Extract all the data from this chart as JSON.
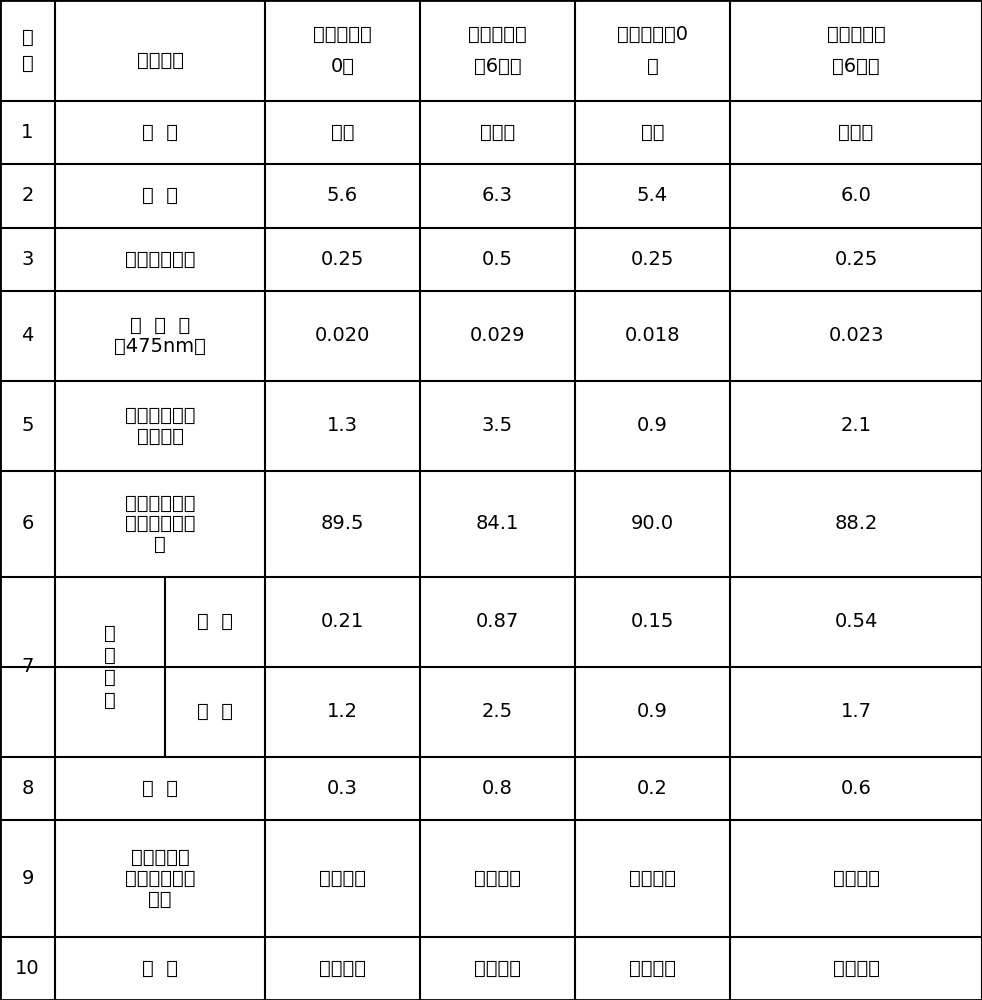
{
  "fig_width": 9.82,
  "fig_height": 10.0,
  "bg_color": "#ffffff",
  "border_color": "#000000",
  "header": {
    "col0_line1": "序",
    "col0_line2": "号",
    "col1_line1": "检验项目",
    "col2_line1": "改进前样品",
    "col2_line2": "0天",
    "col3_line1": "改进前样品",
    "col3_line2": "加6个月",
    "col4_line1": "改进后样品0",
    "col4_line2": "天",
    "col5_line1": "改进后样品",
    "col5_line2": "加6个月"
  },
  "rows": [
    {
      "id": "1",
      "item": "性  状",
      "item_lines": [
        "性  状"
      ],
      "sub_item": null,
      "v1": "白色",
      "v2": "类白色",
      "v3": "白色",
      "v4": "类白色",
      "has_sub": false,
      "sub_rows": null
    },
    {
      "id": "2",
      "item": "酸  度",
      "item_lines": [
        "酸  度"
      ],
      "sub_item": null,
      "v1": "5.6",
      "v2": "6.3",
      "v3": "5.4",
      "v4": "6.0",
      "has_sub": false,
      "sub_rows": null
    },
    {
      "id": "3",
      "item": "溶液的澄清度",
      "item_lines": [
        "溶液的澄清度"
      ],
      "sub_item": null,
      "v1": "0.25",
      "v2": "0.5",
      "v3": "0.25",
      "v4": "0.25",
      "has_sub": false,
      "sub_rows": null
    },
    {
      "id": "4",
      "item": "吸  光  度\n（475nm）",
      "item_lines": [
        "吸  光  度",
        "（475nm）"
      ],
      "sub_item": null,
      "v1": "0.020",
      "v2": "0.029",
      "v3": "0.018",
      "v4": "0.023",
      "has_sub": false,
      "sub_rows": null
    },
    {
      "id": "5",
      "item": "头孢孟多、按\n无水物计",
      "item_lines": [
        "头孢孟多、按",
        "无水物计"
      ],
      "sub_item": null,
      "v1": "1.3",
      "v2": "3.5",
      "v3": "0.9",
      "v4": "2.1",
      "has_sub": false,
      "sub_rows": null
    },
    {
      "id": "6",
      "item": "含量，按无水\n物计含头孢孟\n多",
      "item_lines": [
        "含量，按无水",
        "物计含头孢孟",
        "多"
      ],
      "sub_item": null,
      "v1": "89.5",
      "v2": "84.1",
      "v3": "90.0",
      "v4": "88.2",
      "has_sub": false,
      "sub_rows": null
    },
    {
      "id": "7",
      "item": "有\n关\n物\n质",
      "item_lines": [
        "有",
        "关",
        "物",
        "质"
      ],
      "has_sub": true,
      "sub_rows": [
        {
          "sub_item": "单  杂",
          "v1": "0.21",
          "v2": "0.87",
          "v3": "0.15",
          "v4": "0.54"
        },
        {
          "sub_item": "总  杂",
          "v1": "1.2",
          "v2": "2.5",
          "v3": "0.9",
          "v4": "1.7"
        }
      ]
    },
    {
      "id": "8",
      "item": "水  分",
      "item_lines": [
        "水  分"
      ],
      "sub_item": null,
      "v1": "0.3",
      "v2": "0.8",
      "v3": "0.2",
      "v4": "0.6",
      "has_sub": false,
      "sub_rows": null
    },
    {
      "id": "9",
      "item": "细菌内毒素\n（以头孢孟多\n计）",
      "item_lines": [
        "细菌内毒素",
        "（以头孢孟多",
        "计）"
      ],
      "sub_item": null,
      "v1": "符合规定",
      "v2": "符合规定",
      "v3": "符合规定",
      "v4": "符合规定",
      "has_sub": false,
      "sub_rows": null
    },
    {
      "id": "10",
      "item": "无  菌",
      "item_lines": [
        "无  菌"
      ],
      "sub_item": null,
      "v1": "符合规定",
      "v2": "符合规定",
      "v3": "符合规定",
      "v4": "符合规定",
      "has_sub": false,
      "sub_rows": null
    }
  ],
  "font_size": 14,
  "header_font_size": 14,
  "line_color": "#000000",
  "text_color": "#000000"
}
